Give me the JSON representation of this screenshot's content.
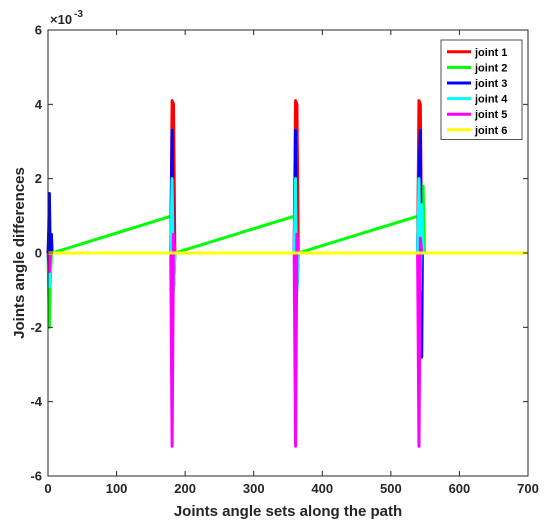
{
  "chart_data": {
    "type": "line",
    "title": "",
    "xlabel": "Joints angle sets along the path",
    "ylabel": "Joints angle differences",
    "xlim": [
      0,
      700
    ],
    "ylim": [
      -6,
      6
    ],
    "y_scale_factor": "×10",
    "y_scale_exponent": "-3",
    "xticks": [
      0,
      100,
      200,
      300,
      400,
      500,
      600,
      700
    ],
    "yticks": [
      -6,
      -4,
      -2,
      0,
      2,
      4,
      6
    ],
    "grid": false,
    "legend_position": "top-right",
    "series": [
      {
        "name": "joint 1",
        "color": "#ff0000",
        "x": [
          0,
          179,
          181,
          183,
          185,
          359,
          361,
          363,
          365,
          539,
          541,
          543,
          545,
          700
        ],
        "y": [
          0,
          0,
          4.1,
          4.0,
          0,
          0,
          4.1,
          4.0,
          0,
          0,
          4.1,
          4.0,
          0,
          0
        ]
      },
      {
        "name": "joint 2",
        "color": "#00ff00",
        "x": [
          0,
          2,
          3,
          5,
          6,
          181,
          183,
          185,
          361,
          363,
          365,
          541,
          543,
          545,
          547,
          549,
          700
        ],
        "y": [
          0,
          -2.0,
          -0.9,
          0,
          0,
          1.0,
          -1.0,
          0,
          1.0,
          -1.0,
          0,
          1.0,
          -1.0,
          0,
          1.8,
          0,
          0
        ]
      },
      {
        "name": "joint 3",
        "color": "#0000ff",
        "x": [
          0,
          1,
          2,
          3,
          4,
          5,
          6,
          179,
          181,
          183,
          185,
          359,
          361,
          363,
          365,
          539,
          541,
          543,
          545,
          546,
          548,
          700
        ],
        "y": [
          0,
          0.6,
          1.6,
          0.3,
          0,
          0.5,
          0,
          0,
          3.3,
          -1.0,
          0,
          0,
          3.3,
          -1.0,
          0,
          0,
          2.0,
          3.3,
          -2.8,
          0.1,
          0,
          0
        ]
      },
      {
        "name": "joint 4",
        "color": "#00ffff",
        "x": [
          0,
          2,
          4,
          179,
          181,
          183,
          185,
          359,
          361,
          363,
          365,
          539,
          541,
          543,
          545,
          547,
          700
        ],
        "y": [
          0,
          -0.9,
          0,
          0,
          2.0,
          -1.0,
          0,
          0,
          2.0,
          -1.0,
          0,
          0,
          2.0,
          -1.0,
          1.3,
          0,
          0
        ]
      },
      {
        "name": "joint 5",
        "color": "#ff00ff",
        "x": [
          0,
          2,
          4,
          179,
          181,
          183,
          185,
          359,
          361,
          363,
          365,
          539,
          541,
          543,
          545,
          700
        ],
        "y": [
          0,
          -0.5,
          0,
          0,
          -5.2,
          0.5,
          0,
          0,
          -5.2,
          0.5,
          0,
          0,
          -5.2,
          0.4,
          0,
          0
        ]
      },
      {
        "name": "joint 6",
        "color": "#ffff00",
        "x": [
          0,
          700
        ],
        "y": [
          0,
          0
        ]
      }
    ]
  }
}
